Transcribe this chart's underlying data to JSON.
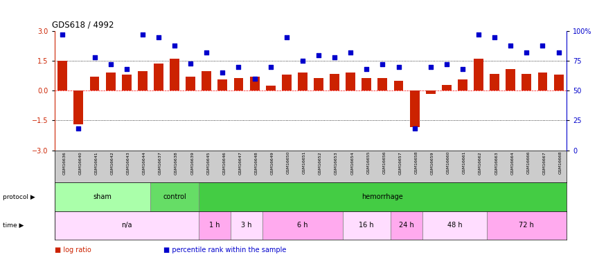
{
  "title": "GDS618 / 4992",
  "samples": [
    "GSM16636",
    "GSM16640",
    "GSM16641",
    "GSM16642",
    "GSM16643",
    "GSM16644",
    "GSM16637",
    "GSM16638",
    "GSM16639",
    "GSM16645",
    "GSM16646",
    "GSM16647",
    "GSM16648",
    "GSM16649",
    "GSM16650",
    "GSM16651",
    "GSM16652",
    "GSM16653",
    "GSM16654",
    "GSM16655",
    "GSM16656",
    "GSM16657",
    "GSM16658",
    "GSM16659",
    "GSM16660",
    "GSM16661",
    "GSM16662",
    "GSM16663",
    "GSM16664",
    "GSM16666",
    "GSM16667",
    "GSM16668"
  ],
  "log_ratio": [
    1.5,
    -1.7,
    0.7,
    0.9,
    0.8,
    1.0,
    1.35,
    1.6,
    0.7,
    1.0,
    0.55,
    0.65,
    0.7,
    0.25,
    0.8,
    0.9,
    0.65,
    0.85,
    0.9,
    0.65,
    0.65,
    0.5,
    -1.85,
    -0.15,
    0.3,
    0.55,
    1.6,
    0.85,
    1.1,
    0.85,
    0.9,
    0.8
  ],
  "percentile_rank": [
    97,
    18,
    78,
    72,
    68,
    97,
    95,
    88,
    73,
    82,
    65,
    70,
    60,
    70,
    95,
    75,
    80,
    78,
    82,
    68,
    72,
    70,
    18,
    70,
    72,
    68,
    97,
    95,
    88,
    82,
    88,
    82
  ],
  "protocol_groups": [
    {
      "label": "sham",
      "start": 0,
      "end": 6,
      "color": "#aaffaa"
    },
    {
      "label": "control",
      "start": 6,
      "end": 9,
      "color": "#66dd66"
    },
    {
      "label": "hemorrhage",
      "start": 9,
      "end": 32,
      "color": "#44cc44"
    }
  ],
  "time_groups": [
    {
      "label": "n/a",
      "start": 0,
      "end": 9,
      "color": "#ffddff"
    },
    {
      "label": "1 h",
      "start": 9,
      "end": 11,
      "color": "#ffaaee"
    },
    {
      "label": "3 h",
      "start": 11,
      "end": 13,
      "color": "#ffddff"
    },
    {
      "label": "6 h",
      "start": 13,
      "end": 18,
      "color": "#ffaaee"
    },
    {
      "label": "16 h",
      "start": 18,
      "end": 21,
      "color": "#ffddff"
    },
    {
      "label": "24 h",
      "start": 21,
      "end": 23,
      "color": "#ffaaee"
    },
    {
      "label": "48 h",
      "start": 23,
      "end": 27,
      "color": "#ffddff"
    },
    {
      "label": "72 h",
      "start": 27,
      "end": 32,
      "color": "#ffaaee"
    }
  ],
  "bar_color": "#cc2200",
  "dot_color": "#0000cc",
  "ylim_left": [
    -3,
    3
  ],
  "ylim_right": [
    0,
    100
  ],
  "yticks_left": [
    -3,
    -1.5,
    0,
    1.5,
    3
  ],
  "yticks_right": [
    0,
    25,
    50,
    75,
    100
  ],
  "ytick_labels_right": [
    "0",
    "25",
    "50",
    "75",
    "100%"
  ],
  "hlines_dotted": [
    1.5,
    -1.5
  ],
  "hline_red": 0.0,
  "legend_items": [
    {
      "color": "#cc2200",
      "label": "log ratio"
    },
    {
      "color": "#0000cc",
      "label": "percentile rank within the sample"
    }
  ],
  "bg_color": "#ffffff",
  "label_area_color": "#cccccc"
}
